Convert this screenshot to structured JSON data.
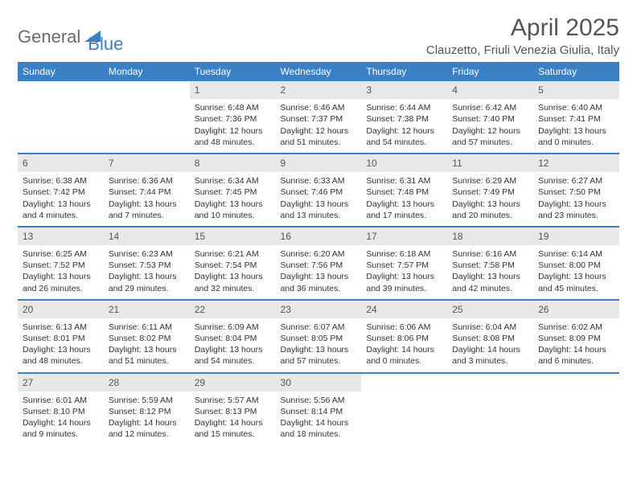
{
  "brand": {
    "part1": "General",
    "part2": "Blue"
  },
  "title": "April 2025",
  "location": "Clauzetto, Friuli Venezia Giulia, Italy",
  "colors": {
    "header_bg": "#3b7fc4",
    "header_fg": "#ffffff",
    "daynum_bg": "#e8e8e8",
    "rule": "#3b7fc4",
    "text": "#333333",
    "brand_gray": "#6b6b6b",
    "brand_blue": "#3b7fc4"
  },
  "weekdays": [
    "Sunday",
    "Monday",
    "Tuesday",
    "Wednesday",
    "Thursday",
    "Friday",
    "Saturday"
  ],
  "weeks": [
    [
      null,
      null,
      {
        "n": "1",
        "sr": "6:48 AM",
        "ss": "7:36 PM",
        "dl": "12 hours and 48 minutes."
      },
      {
        "n": "2",
        "sr": "6:46 AM",
        "ss": "7:37 PM",
        "dl": "12 hours and 51 minutes."
      },
      {
        "n": "3",
        "sr": "6:44 AM",
        "ss": "7:38 PM",
        "dl": "12 hours and 54 minutes."
      },
      {
        "n": "4",
        "sr": "6:42 AM",
        "ss": "7:40 PM",
        "dl": "12 hours and 57 minutes."
      },
      {
        "n": "5",
        "sr": "6:40 AM",
        "ss": "7:41 PM",
        "dl": "13 hours and 0 minutes."
      }
    ],
    [
      {
        "n": "6",
        "sr": "6:38 AM",
        "ss": "7:42 PM",
        "dl": "13 hours and 4 minutes."
      },
      {
        "n": "7",
        "sr": "6:36 AM",
        "ss": "7:44 PM",
        "dl": "13 hours and 7 minutes."
      },
      {
        "n": "8",
        "sr": "6:34 AM",
        "ss": "7:45 PM",
        "dl": "13 hours and 10 minutes."
      },
      {
        "n": "9",
        "sr": "6:33 AM",
        "ss": "7:46 PM",
        "dl": "13 hours and 13 minutes."
      },
      {
        "n": "10",
        "sr": "6:31 AM",
        "ss": "7:48 PM",
        "dl": "13 hours and 17 minutes."
      },
      {
        "n": "11",
        "sr": "6:29 AM",
        "ss": "7:49 PM",
        "dl": "13 hours and 20 minutes."
      },
      {
        "n": "12",
        "sr": "6:27 AM",
        "ss": "7:50 PM",
        "dl": "13 hours and 23 minutes."
      }
    ],
    [
      {
        "n": "13",
        "sr": "6:25 AM",
        "ss": "7:52 PM",
        "dl": "13 hours and 26 minutes."
      },
      {
        "n": "14",
        "sr": "6:23 AM",
        "ss": "7:53 PM",
        "dl": "13 hours and 29 minutes."
      },
      {
        "n": "15",
        "sr": "6:21 AM",
        "ss": "7:54 PM",
        "dl": "13 hours and 32 minutes."
      },
      {
        "n": "16",
        "sr": "6:20 AM",
        "ss": "7:56 PM",
        "dl": "13 hours and 36 minutes."
      },
      {
        "n": "17",
        "sr": "6:18 AM",
        "ss": "7:57 PM",
        "dl": "13 hours and 39 minutes."
      },
      {
        "n": "18",
        "sr": "6:16 AM",
        "ss": "7:58 PM",
        "dl": "13 hours and 42 minutes."
      },
      {
        "n": "19",
        "sr": "6:14 AM",
        "ss": "8:00 PM",
        "dl": "13 hours and 45 minutes."
      }
    ],
    [
      {
        "n": "20",
        "sr": "6:13 AM",
        "ss": "8:01 PM",
        "dl": "13 hours and 48 minutes."
      },
      {
        "n": "21",
        "sr": "6:11 AM",
        "ss": "8:02 PM",
        "dl": "13 hours and 51 minutes."
      },
      {
        "n": "22",
        "sr": "6:09 AM",
        "ss": "8:04 PM",
        "dl": "13 hours and 54 minutes."
      },
      {
        "n": "23",
        "sr": "6:07 AM",
        "ss": "8:05 PM",
        "dl": "13 hours and 57 minutes."
      },
      {
        "n": "24",
        "sr": "6:06 AM",
        "ss": "8:06 PM",
        "dl": "14 hours and 0 minutes."
      },
      {
        "n": "25",
        "sr": "6:04 AM",
        "ss": "8:08 PM",
        "dl": "14 hours and 3 minutes."
      },
      {
        "n": "26",
        "sr": "6:02 AM",
        "ss": "8:09 PM",
        "dl": "14 hours and 6 minutes."
      }
    ],
    [
      {
        "n": "27",
        "sr": "6:01 AM",
        "ss": "8:10 PM",
        "dl": "14 hours and 9 minutes."
      },
      {
        "n": "28",
        "sr": "5:59 AM",
        "ss": "8:12 PM",
        "dl": "14 hours and 12 minutes."
      },
      {
        "n": "29",
        "sr": "5:57 AM",
        "ss": "8:13 PM",
        "dl": "14 hours and 15 minutes."
      },
      {
        "n": "30",
        "sr": "5:56 AM",
        "ss": "8:14 PM",
        "dl": "14 hours and 18 minutes."
      },
      null,
      null,
      null
    ]
  ],
  "labels": {
    "sunrise": "Sunrise:",
    "sunset": "Sunset:",
    "daylight": "Daylight:"
  }
}
